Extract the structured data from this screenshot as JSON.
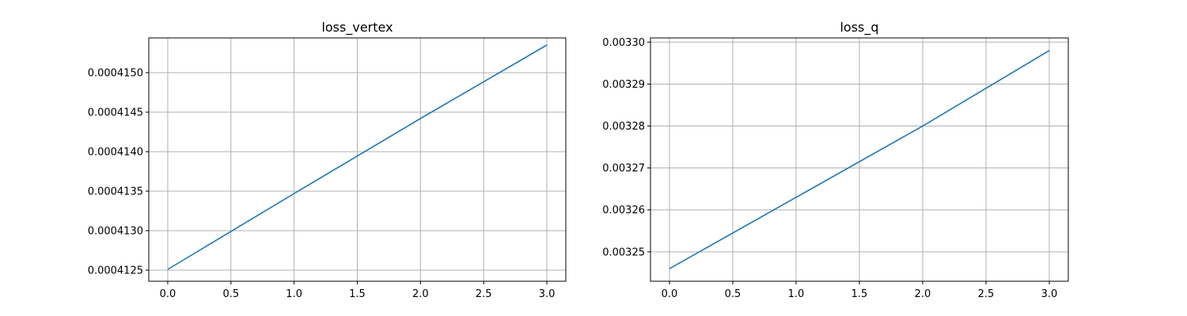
{
  "figure": {
    "background": "#ffffff",
    "grid_color": "#b0b0b0",
    "line_color": "#1f77b4"
  },
  "chart_data": [
    {
      "type": "line",
      "title": "loss_vertex",
      "xlabel": "",
      "ylabel": "",
      "grid": true,
      "xlim": [
        -0.15,
        3.15
      ],
      "ylim": [
        0.00041236,
        0.00041544
      ],
      "xticks": [
        0.0,
        0.5,
        1.0,
        1.5,
        2.0,
        2.5,
        3.0
      ],
      "xtick_labels": [
        "0.0",
        "0.5",
        "1.0",
        "1.5",
        "2.0",
        "2.5",
        "3.0"
      ],
      "yticks": [
        0.0004125,
        0.000413,
        0.0004135,
        0.000414,
        0.0004145,
        0.000415
      ],
      "ytick_labels": [
        "0.0004125",
        "0.0004130",
        "0.0004135",
        "0.0004140",
        "0.0004145",
        "0.0004150"
      ],
      "series": [
        {
          "x": [
            0,
            1,
            2,
            3
          ],
          "y": [
            0.00041251,
            0.00041347,
            0.00041442,
            0.00041535
          ]
        }
      ]
    },
    {
      "type": "line",
      "title": "loss_q",
      "xlabel": "",
      "ylabel": "",
      "grid": true,
      "xlim": [
        -0.15,
        3.15
      ],
      "ylim": [
        0.003243,
        0.003301
      ],
      "xticks": [
        0.0,
        0.5,
        1.0,
        1.5,
        2.0,
        2.5,
        3.0
      ],
      "xtick_labels": [
        "0.0",
        "0.5",
        "1.0",
        "1.5",
        "2.0",
        "2.5",
        "3.0"
      ],
      "yticks": [
        0.00325,
        0.00326,
        0.00327,
        0.00328,
        0.00329,
        0.0033
      ],
      "ytick_labels": [
        "0.00325",
        "0.00326",
        "0.00327",
        "0.00328",
        "0.00329",
        "0.00330"
      ],
      "series": [
        {
          "x": [
            0,
            1,
            2,
            3
          ],
          "y": [
            0.003246,
            0.003263,
            0.00328,
            0.003298
          ]
        }
      ]
    }
  ]
}
